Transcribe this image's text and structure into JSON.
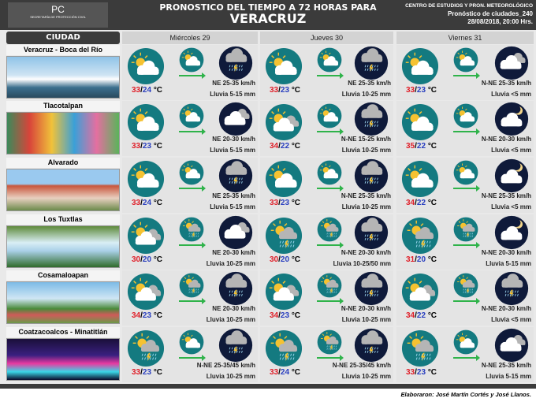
{
  "header": {
    "logo_text": "PC",
    "logo_sub": "SECRETARÍA DE PROTECCIÓN CIVIL",
    "title_line1": "PRONOSTICO DEL TIEMPO A 72 HORAS PARA",
    "title_line2": "VERACRUZ",
    "org": "CENTRO DE ESTUDIOS Y PRON. METEOROLÓGICO",
    "product": "Pronóstico de ciudades_240",
    "issued": "28/08/2018, 20:00 Hrs."
  },
  "city_header": "CIUDAD",
  "days": [
    "Miércoles 29",
    "Jueves 30",
    "Viernes 31"
  ],
  "colors": {
    "high": "#e0202a",
    "low": "#2a3fbf",
    "day_icon_bg": "#147a80",
    "night_icon_bg": "#0f1a3a",
    "wind_arrow": "#2fb34a"
  },
  "unit": "°C",
  "cities": [
    {
      "name": "Veracruz - Boca del Río",
      "forecast": [
        {
          "hi": "33",
          "lo": "24",
          "wind": "NE 25-35 km/h",
          "rain": "Lluvia 5-15 mm",
          "icons": [
            "sun-cloud",
            "sun-cloud",
            "night-storm"
          ]
        },
        {
          "hi": "33",
          "lo": "23",
          "wind": "NE 25-35 km/h",
          "rain": "Lluvia 10-25 mm",
          "icons": [
            "sun-cloud",
            "sun-cloud",
            "night-storm"
          ]
        },
        {
          "hi": "33",
          "lo": "23",
          "wind": "N-NE 25-35 km/h",
          "rain": "Lluvia <5 mm",
          "icons": [
            "sun-cloud",
            "sun-cloud",
            "night-cloud"
          ]
        }
      ]
    },
    {
      "name": "Tlacotalpan",
      "forecast": [
        {
          "hi": "33",
          "lo": "23",
          "wind": "NE 20-30 km/h",
          "rain": "Lluvia 5-15 mm",
          "icons": [
            "sun-cloud",
            "sun-cloud",
            "night-cloud"
          ]
        },
        {
          "hi": "34",
          "lo": "22",
          "wind": "N-NE 15-25 km/h",
          "rain": "Lluvia 10-25 mm",
          "icons": [
            "sun-cloud-gray",
            "sun-cloud",
            "night-storm"
          ]
        },
        {
          "hi": "35",
          "lo": "22",
          "wind": "N-NE 20-30 km/h",
          "rain": "Lluvia <5 mm",
          "icons": [
            "sun-cloud",
            "sun-cloud",
            "night-moon"
          ]
        }
      ]
    },
    {
      "name": "Alvarado",
      "forecast": [
        {
          "hi": "33",
          "lo": "24",
          "wind": "NE 25-35 km/h",
          "rain": "Lluvia 5-15 mm",
          "icons": [
            "sun-cloud",
            "sun-cloud",
            "night-storm"
          ]
        },
        {
          "hi": "33",
          "lo": "23",
          "wind": "N-NE 25-35 km/h",
          "rain": "Lluvia 10-25 mm",
          "icons": [
            "sun-cloud",
            "sun-cloud",
            "night-storm"
          ]
        },
        {
          "hi": "34",
          "lo": "22",
          "wind": "N-NE 25-35 km/h",
          "rain": "Lluvia <5 mm",
          "icons": [
            "sun-cloud",
            "sun-cloud",
            "night-moon"
          ]
        }
      ]
    },
    {
      "name": "Los Tuxtlas",
      "forecast": [
        {
          "hi": "30",
          "lo": "20",
          "wind": "NE 20-30 km/h",
          "rain": "Lluvia 10-25 mm",
          "icons": [
            "sun-cloud-gray",
            "sun-storm",
            "night-cloud"
          ]
        },
        {
          "hi": "30",
          "lo": "20",
          "wind": "N-NE 20-30 km/h",
          "rain": "Lluvia 10-25/50 mm",
          "icons": [
            "sun-storm",
            "sun-storm",
            "night-storm"
          ]
        },
        {
          "hi": "31",
          "lo": "20",
          "wind": "N-NE 20-30 km/h",
          "rain": "Lluvia 5-15 mm",
          "icons": [
            "sun-storm",
            "sun-storm",
            "night-moon"
          ]
        }
      ]
    },
    {
      "name": "Cosamaloapan",
      "forecast": [
        {
          "hi": "34",
          "lo": "23",
          "wind": "NE 20-30 km/h",
          "rain": "Lluvia 10-25 mm",
          "icons": [
            "sun-cloud-gray",
            "sun-storm",
            "night-storm"
          ]
        },
        {
          "hi": "34",
          "lo": "23",
          "wind": "N-NE 20-30 km/h",
          "rain": "Lluvia 10-25 mm",
          "icons": [
            "sun-cloud-gray",
            "sun-storm",
            "night-storm"
          ]
        },
        {
          "hi": "34",
          "lo": "22",
          "wind": "N-NE 20-30 km/h",
          "rain": "Lluvia <5 mm",
          "icons": [
            "sun-cloud-gray",
            "sun-storm",
            "night-storm"
          ]
        }
      ]
    },
    {
      "name": "Coatzacoalcos - Minatitlán",
      "forecast": [
        {
          "hi": "33",
          "lo": "23",
          "wind": "N-NE 25-35/45 km/h",
          "rain": "Lluvia 10-25 mm",
          "icons": [
            "sun-storm",
            "sun-cloud",
            "night-storm"
          ]
        },
        {
          "hi": "33",
          "lo": "24",
          "wind": "N-NE 25-35/45 km/h",
          "rain": "Lluvia 10-25 mm",
          "icons": [
            "sun-storm",
            "sun-storm",
            "night-storm"
          ]
        },
        {
          "hi": "33",
          "lo": "23",
          "wind": "N-NE 25-35 km/h",
          "rain": "Lluvia 5-15 mm",
          "icons": [
            "sun-storm",
            "sun-cloud",
            "night-cloud"
          ]
        }
      ]
    }
  ],
  "footer": {
    "credit": "Elaboraron: José Martín Cortés y José Llanos."
  }
}
